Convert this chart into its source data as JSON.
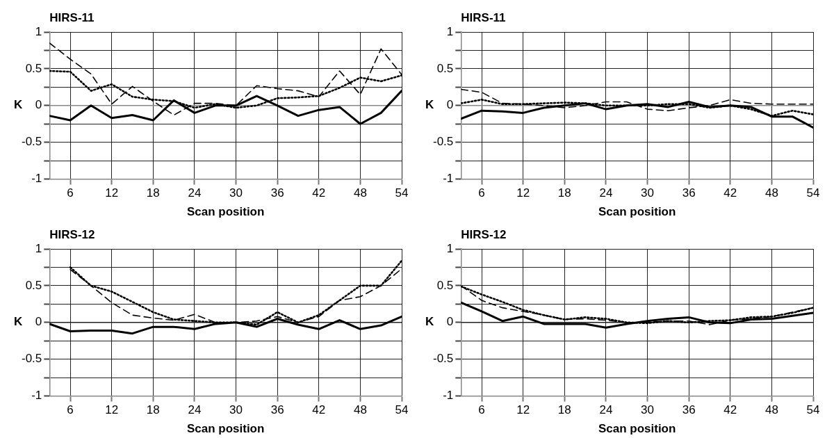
{
  "chart_data": [
    {
      "type": "line",
      "title": "HIRS-11",
      "xlabel": "Scan position",
      "ylabel": "K",
      "x": [
        3,
        6,
        9,
        12,
        15,
        18,
        21,
        24,
        27,
        30,
        33,
        36,
        39,
        42,
        45,
        48,
        51,
        54
      ],
      "xlim": [
        3,
        54
      ],
      "xticks": [
        6,
        12,
        18,
        24,
        30,
        36,
        42,
        48,
        54
      ],
      "ylim": [
        -1,
        1
      ],
      "yticks": [
        -1,
        {
          "value": -0.75,
          "label": null
        },
        -0.5,
        {
          "value": -0.25,
          "label": null
        },
        0,
        {
          "value": 0.25,
          "label": null
        },
        0.5,
        {
          "value": 0.75,
          "label": null
        },
        1
      ],
      "grid": true,
      "legend": false,
      "marker": "none",
      "ref_lines": [
        {
          "axis": "y",
          "value": 0,
          "color": "#888888"
        }
      ],
      "series": [
        {
          "color": "#000000",
          "line_style": "solid",
          "values": [
            -0.14,
            -0.2,
            0.0,
            -0.17,
            -0.13,
            -0.2,
            0.07,
            -0.1,
            0.0,
            0.0,
            0.13,
            0.0,
            -0.14,
            -0.06,
            -0.02,
            -0.25,
            -0.1,
            0.2
          ]
        },
        {
          "color": "#000000",
          "line_style": "dashed",
          "values": [
            0.85,
            0.63,
            0.43,
            0.02,
            0.26,
            0.06,
            -0.13,
            0.03,
            0.03,
            0.0,
            0.27,
            0.23,
            0.2,
            0.12,
            0.47,
            0.15,
            0.77,
            0.42
          ]
        },
        {
          "color": "#000000",
          "line_style": "dotted",
          "values": [
            0.47,
            0.46,
            0.2,
            0.29,
            0.12,
            0.08,
            0.06,
            -0.03,
            0.02,
            -0.03,
            0.0,
            0.1,
            0.11,
            0.13,
            0.24,
            0.38,
            0.33,
            0.41
          ]
        }
      ]
    },
    {
      "type": "line",
      "title": "HIRS-11",
      "xlabel": "Scan position",
      "ylabel": "K",
      "x": [
        3,
        6,
        9,
        12,
        15,
        18,
        21,
        24,
        27,
        30,
        33,
        36,
        39,
        42,
        45,
        48,
        51,
        54
      ],
      "xlim": [
        3,
        54
      ],
      "xticks": [
        6,
        12,
        18,
        24,
        30,
        36,
        42,
        48,
        54
      ],
      "ylim": [
        -1,
        1
      ],
      "yticks": [
        -1,
        {
          "value": -0.75,
          "label": null
        },
        -0.5,
        {
          "value": -0.25,
          "label": null
        },
        0,
        {
          "value": 0.25,
          "label": null
        },
        0.5,
        {
          "value": 0.75,
          "label": null
        },
        1
      ],
      "grid": true,
      "legend": false,
      "marker": "none",
      "ref_lines": [
        {
          "axis": "y",
          "value": 0,
          "color": "#888888"
        }
      ],
      "series": [
        {
          "color": "#000000",
          "line_style": "solid",
          "values": [
            -0.18,
            -0.07,
            -0.08,
            -0.1,
            -0.03,
            0.0,
            0.03,
            -0.05,
            0.0,
            0.02,
            -0.02,
            0.05,
            -0.02,
            0.0,
            -0.02,
            -0.15,
            -0.15,
            -0.3
          ]
        },
        {
          "color": "#000000",
          "line_style": "dashed",
          "values": [
            0.22,
            0.18,
            0.03,
            0.02,
            0.0,
            -0.03,
            0.0,
            0.05,
            0.05,
            -0.05,
            -0.07,
            -0.03,
            0.0,
            0.08,
            0.03,
            0.02,
            0.02,
            0.02
          ]
        },
        {
          "color": "#000000",
          "line_style": "dotted",
          "values": [
            0.03,
            0.08,
            0.02,
            0.02,
            0.03,
            0.04,
            0.03,
            0.0,
            0.0,
            0.0,
            0.02,
            0.02,
            -0.03,
            0.0,
            -0.05,
            -0.14,
            -0.07,
            -0.12
          ]
        }
      ]
    },
    {
      "type": "line",
      "title": "HIRS-12",
      "xlabel": "Scan position",
      "ylabel": "K",
      "x": [
        3,
        6,
        9,
        12,
        15,
        18,
        21,
        24,
        27,
        30,
        33,
        36,
        39,
        42,
        45,
        48,
        51,
        54
      ],
      "xlim": [
        3,
        54
      ],
      "xticks": [
        6,
        12,
        18,
        24,
        30,
        36,
        42,
        48,
        54
      ],
      "ylim": [
        -1,
        1
      ],
      "yticks": [
        -1,
        {
          "value": -0.75,
          "label": null
        },
        -0.5,
        {
          "value": -0.25,
          "label": null
        },
        0,
        {
          "value": 0.25,
          "label": null
        },
        0.5,
        {
          "value": 0.75,
          "label": null
        },
        1
      ],
      "grid": true,
      "legend": false,
      "marker": "none",
      "ref_lines": [
        {
          "axis": "y",
          "value": 0,
          "color": "#222222"
        }
      ],
      "series": [
        {
          "color": "#000000",
          "line_style": "solid",
          "values": [
            -0.02,
            -0.12,
            -0.11,
            -0.11,
            -0.15,
            -0.06,
            -0.06,
            -0.09,
            -0.02,
            0.0,
            -0.06,
            0.05,
            -0.03,
            -0.09,
            0.03,
            -0.09,
            -0.04,
            0.08
          ]
        },
        {
          "color": "#000000",
          "line_style": "dashed",
          "values": [
            null,
            0.72,
            0.5,
            0.27,
            0.1,
            0.06,
            0.03,
            0.11,
            0.0,
            0.0,
            0.02,
            0.08,
            0.0,
            0.08,
            0.3,
            0.35,
            0.5,
            0.73
          ]
        },
        {
          "color": "#000000",
          "line_style": "dotted",
          "values": [
            null,
            0.75,
            0.5,
            0.42,
            0.28,
            0.14,
            0.04,
            0.02,
            0.0,
            0.0,
            -0.03,
            0.14,
            0.0,
            0.1,
            0.3,
            0.5,
            0.5,
            0.84
          ]
        }
      ]
    },
    {
      "type": "line",
      "title": "HIRS-12",
      "xlabel": "Scan position",
      "ylabel": "K",
      "x": [
        3,
        6,
        9,
        12,
        15,
        18,
        21,
        24,
        27,
        30,
        33,
        36,
        39,
        42,
        45,
        48,
        51,
        54
      ],
      "xlim": [
        3,
        54
      ],
      "xticks": [
        6,
        12,
        18,
        24,
        30,
        36,
        42,
        48,
        54
      ],
      "ylim": [
        -1,
        1
      ],
      "yticks": [
        -1,
        {
          "value": -0.75,
          "label": null
        },
        -0.5,
        {
          "value": -0.25,
          "label": null
        },
        0,
        {
          "value": 0.25,
          "label": null
        },
        0.5,
        {
          "value": 0.75,
          "label": null
        },
        1
      ],
      "grid": true,
      "legend": false,
      "marker": "none",
      "ref_lines": [
        {
          "axis": "y",
          "value": 0,
          "color": "#222222"
        }
      ],
      "series": [
        {
          "color": "#000000",
          "line_style": "solid",
          "values": [
            0.27,
            0.15,
            0.02,
            0.08,
            -0.02,
            -0.02,
            -0.02,
            -0.07,
            -0.02,
            0.02,
            0.05,
            0.07,
            0.0,
            -0.01,
            0.04,
            0.05,
            0.09,
            0.13
          ]
        },
        {
          "color": "#000000",
          "line_style": "dashed",
          "values": [
            0.5,
            0.3,
            0.2,
            0.15,
            0.1,
            0.04,
            0.05,
            0.03,
            0.0,
            0.0,
            0.02,
            0.02,
            -0.03,
            0.03,
            0.05,
            0.08,
            0.14,
            0.2
          ]
        },
        {
          "color": "#000000",
          "line_style": "dotted",
          "values": [
            0.49,
            0.38,
            0.28,
            0.17,
            0.1,
            0.04,
            0.07,
            0.05,
            0.0,
            -0.01,
            0.02,
            0.0,
            0.02,
            0.03,
            0.07,
            0.08,
            0.13,
            0.2
          ]
        }
      ]
    }
  ]
}
